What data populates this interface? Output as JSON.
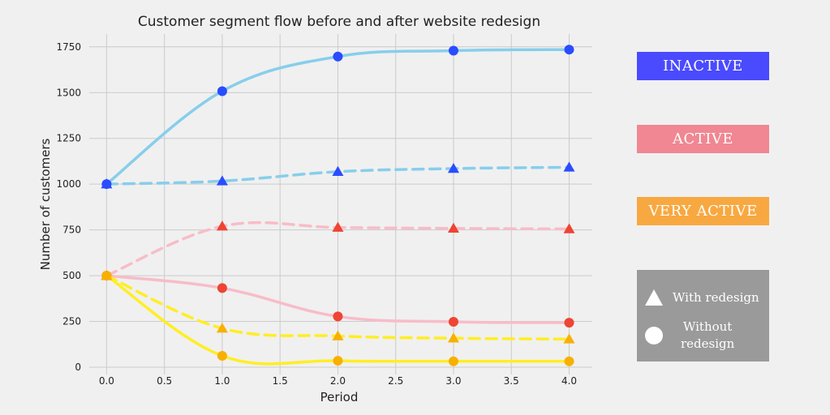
{
  "chart_data": {
    "type": "line",
    "title": "Customer segment flow before and after website redesign",
    "xlabel": "Period",
    "ylabel": "Number of customers",
    "xlim": [
      -0.15,
      4.2
    ],
    "ylim": [
      -40,
      1820
    ],
    "x_ticks": [
      0.0,
      0.5,
      1.0,
      1.5,
      2.0,
      2.5,
      3.0,
      3.5,
      4.0
    ],
    "x_tick_labels": [
      "0.0",
      "0.5",
      "1.0",
      "1.5",
      "2.0",
      "2.5",
      "3.0",
      "3.5",
      "4.0"
    ],
    "y_ticks": [
      0,
      250,
      500,
      750,
      1000,
      1250,
      1500,
      1750
    ],
    "y_tick_labels": [
      "0",
      "250",
      "500",
      "750",
      "1000",
      "1250",
      "1500",
      "1750"
    ],
    "grid": true,
    "x": [
      0,
      1,
      2,
      3,
      4
    ],
    "series": [
      {
        "segment": "INACTIVE",
        "scenario": "Without redesign",
        "marker": "circle",
        "line_style": "solid",
        "line_color": "#87ceeb",
        "marker_color": "#2a4cff",
        "values": [
          1000,
          1508,
          1697,
          1729,
          1735
        ]
      },
      {
        "segment": "INACTIVE",
        "scenario": "With redesign",
        "marker": "triangle",
        "line_style": "dashed",
        "line_color": "#87ceeb",
        "marker_color": "#2a4cff",
        "values": [
          1000,
          1017,
          1068,
          1085,
          1092
        ]
      },
      {
        "segment": "ACTIVE",
        "scenario": "With redesign",
        "marker": "triangle",
        "line_style": "dashed",
        "line_color": "#f8bcc8",
        "marker_color": "#ee4433",
        "values": [
          500,
          770,
          763,
          758,
          755
        ]
      },
      {
        "segment": "ACTIVE",
        "scenario": "Without redesign",
        "marker": "circle",
        "line_style": "solid",
        "line_color": "#f8bcc8",
        "marker_color": "#ee4433",
        "values": [
          500,
          432,
          277,
          248,
          243
        ]
      },
      {
        "segment": "VERY ACTIVE",
        "scenario": "With redesign",
        "marker": "triangle",
        "line_style": "dashed",
        "line_color": "#ffee22",
        "marker_color": "#f8b000",
        "values": [
          500,
          212,
          170,
          158,
          153
        ]
      },
      {
        "segment": "VERY ACTIVE",
        "scenario": "Without redesign",
        "marker": "circle",
        "line_style": "solid",
        "line_color": "#ffee22",
        "marker_color": "#f8b000",
        "values": [
          500,
          62,
          35,
          32,
          32
        ]
      }
    ],
    "legend": {
      "placement": "right",
      "segments": [
        {
          "label": "INACTIVE",
          "color": "#4a4aff"
        },
        {
          "label": "ACTIVE",
          "color": "#f08792"
        },
        {
          "label": "VERY ACTIVE",
          "color": "#f8a840"
        }
      ],
      "box_color": "#9a9a9a",
      "shapes": [
        {
          "shape": "triangle",
          "label": "With redesign"
        },
        {
          "shape": "circle",
          "label": "Without\nredesign"
        }
      ]
    }
  }
}
